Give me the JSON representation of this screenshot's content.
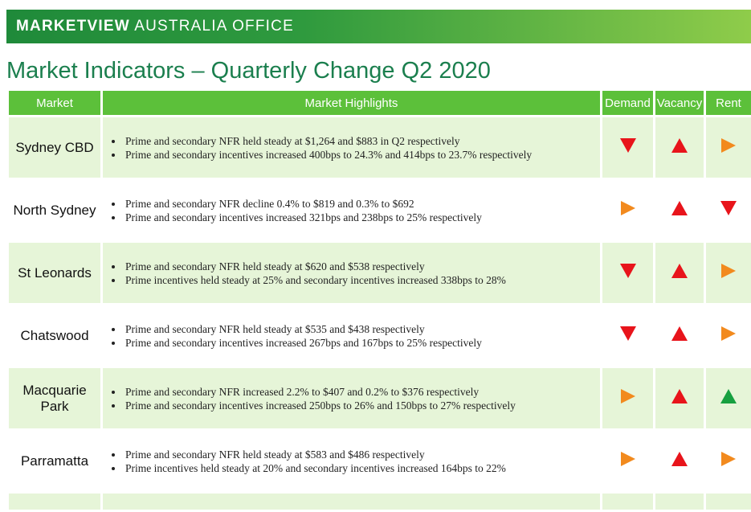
{
  "banner": {
    "brand": "MARKETVIEW",
    "subtitle": "AUSTRALIA OFFICE"
  },
  "title": "Market Indicators – Quarterly Change Q2 2020",
  "columns": [
    "Market",
    "Market Highlights",
    "Demand",
    "Vacancy",
    "Rent"
  ],
  "colors": {
    "header_green": "#5cc03a",
    "row_shade": "#e6f5d8",
    "red": "#e8141b",
    "orange": "#f28a1e",
    "green": "#17a040"
  },
  "rows": [
    {
      "market": "Sydney CBD",
      "highlights": [
        "Prime and secondary NFR held steady at $1,264 and $883 in Q2 respectively",
        "Prime and secondary incentives increased 400bps to 24.3% and 414bps to 23.7% respectively"
      ],
      "demand": "down-red",
      "vacancy": "up-red",
      "rent": "right-orange"
    },
    {
      "market": "North Sydney",
      "highlights": [
        "Prime and secondary NFR decline 0.4% to $819 and 0.3% to $692",
        "Prime and secondary incentives increased 321bps and 238bps to 25% respectively"
      ],
      "demand": "right-orange",
      "vacancy": "up-red",
      "rent": "down-red"
    },
    {
      "market": "St Leonards",
      "highlights": [
        "Prime and secondary NFR held steady at $620 and $538 respectively",
        "Prime incentives held steady at 25% and secondary incentives increased 338bps to 28%"
      ],
      "demand": "down-red",
      "vacancy": "up-red",
      "rent": "right-orange"
    },
    {
      "market": "Chatswood",
      "highlights": [
        "Prime and secondary NFR held steady at $535 and $438 respectively",
        "Prime and secondary incentives increased 267bps and 167bps to 25% respectively"
      ],
      "demand": "down-red",
      "vacancy": "up-red",
      "rent": "right-orange"
    },
    {
      "market": "Macquarie Park",
      "highlights": [
        "Prime and secondary NFR increased 2.2% to $407 and 0.2% to $376 respectively",
        "Prime and secondary incentives increased 250bps to 26% and 150bps to 27% respectively"
      ],
      "demand": "right-orange",
      "vacancy": "up-red",
      "rent": "up-green"
    },
    {
      "market": "Parramatta",
      "highlights": [
        "Prime and secondary NFR held steady at $583 and $486 respectively",
        "Prime incentives held steady at 20% and secondary incentives increased 164bps to 22%"
      ],
      "demand": "right-orange",
      "vacancy": "up-red",
      "rent": "right-orange"
    }
  ]
}
